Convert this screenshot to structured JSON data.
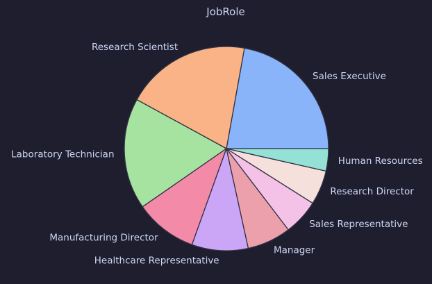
{
  "chart_data": {
    "type": "pie",
    "title": "JobRole",
    "categories": [
      "Sales Executive",
      "Research Scientist",
      "Laboratory Technician",
      "Manufacturing Director",
      "Healthcare Representative",
      "Manager",
      "Sales Representative",
      "Research Director",
      "Human Resources"
    ],
    "values": [
      326,
      292,
      259,
      145,
      131,
      102,
      83,
      80,
      52
    ],
    "colors": [
      "#89b4fa",
      "#fab387",
      "#a6e3a1",
      "#f38ba8",
      "#cba6f7",
      "#eba0ac",
      "#f5c2e7",
      "#f5e0dc",
      "#94e2d5"
    ],
    "start_angle_deg": 0,
    "direction": "counterclockwise"
  },
  "theme": {
    "background": "#1e1e2e",
    "text": "#cdd6f4",
    "edge": "#313244"
  }
}
